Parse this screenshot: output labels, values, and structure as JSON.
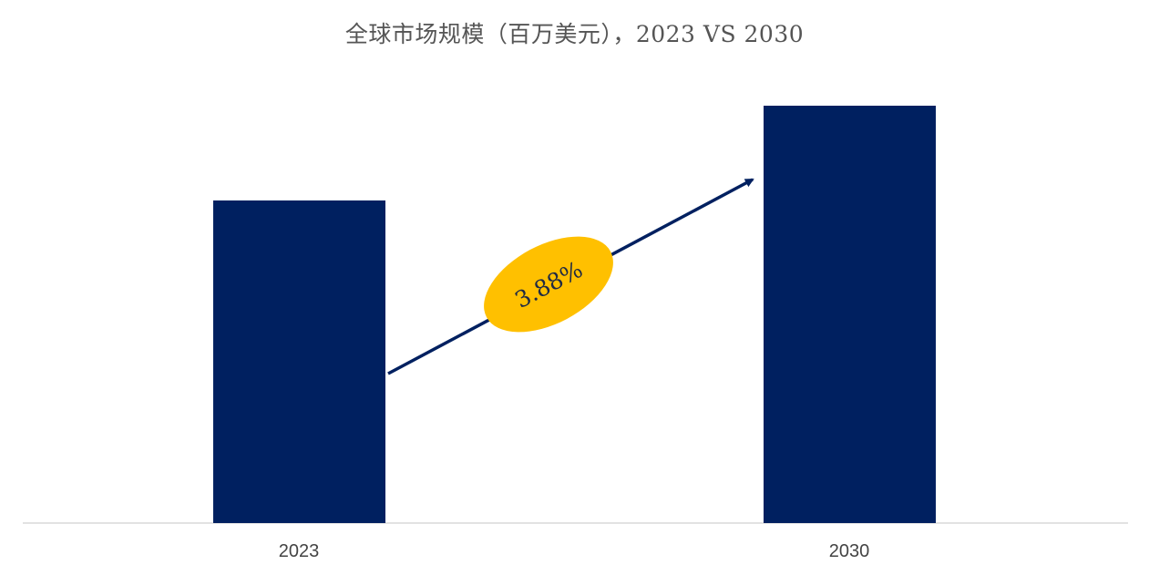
{
  "chart_data": {
    "type": "bar",
    "title": "全球市场规模（百万美元），2023 VS 2030",
    "xlabel": "",
    "ylabel": "",
    "categories": [
      "2023",
      "2030"
    ],
    "values": [
      100,
      129.3
    ],
    "ylim": [
      0,
      135
    ],
    "grid": false,
    "legend": "none",
    "bar_color": "#002060",
    "annotation": {
      "label": "3.88%",
      "shape": "ellipse",
      "fill_color": "#ffc000",
      "arrow_color": "#002060"
    }
  }
}
